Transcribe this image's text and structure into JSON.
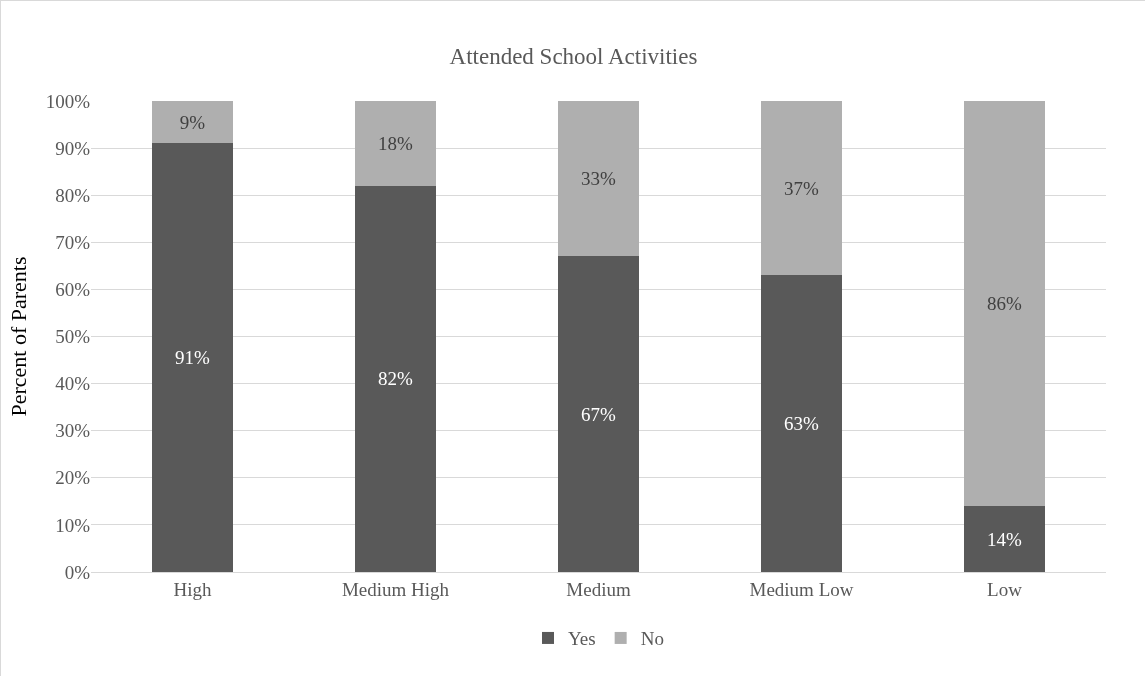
{
  "chart_data": {
    "type": "bar",
    "title": "Attended School Activities",
    "ylabel": "Percent of Parents",
    "categories": [
      "High",
      "Medium High",
      "Medium",
      "Medium Low",
      "Low"
    ],
    "series": [
      {
        "name": "Yes",
        "color": "#595959",
        "values": [
          91,
          82,
          67,
          63,
          14
        ],
        "value_labels": [
          "91%",
          "82%",
          "67%",
          "63%",
          "14%"
        ]
      },
      {
        "name": "No",
        "color": "#afafaf",
        "values": [
          9,
          18,
          33,
          37,
          86
        ],
        "value_labels": [
          "9%",
          "18%",
          "33%",
          "37%",
          "86%"
        ]
      }
    ],
    "stacked": true,
    "ylim": [
      0,
      100
    ],
    "yticks": [
      {
        "value": 0,
        "label": "0%"
      },
      {
        "value": 10,
        "label": "10%"
      },
      {
        "value": 20,
        "label": "20%"
      },
      {
        "value": 30,
        "label": "30%"
      },
      {
        "value": 40,
        "label": "40%"
      },
      {
        "value": 50,
        "label": "50%"
      },
      {
        "value": 60,
        "label": "60%"
      },
      {
        "value": 70,
        "label": "70%"
      },
      {
        "value": 80,
        "label": "80%"
      },
      {
        "value": 90,
        "label": "90%"
      },
      {
        "value": 100,
        "label": "100%"
      }
    ],
    "grid": "y",
    "legend": "bottom"
  }
}
